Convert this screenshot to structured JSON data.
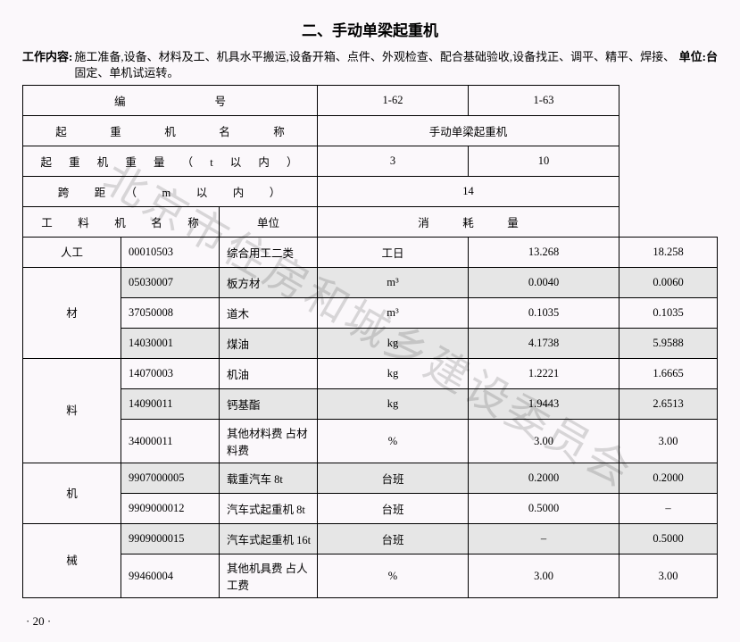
{
  "title": "二、手动单梁起重机",
  "desc_label": "工作内容:",
  "desc_text": "施工准备,设备、材料及工、机具水平搬运,设备开箱、点件、外观检查、配合基础验收,设备找正、调平、精平、焊接、固定、单机试运转。",
  "unit_label": "单位:台",
  "header": {
    "row1_label": "编　　　　　　　　号",
    "row1_v1": "1-62",
    "row1_v2": "1-63",
    "row2_label": "起　重　机　名　称",
    "row2_val": "手动单梁起重机",
    "row3_label": "起 重 机 重 量 （ t 以 内 ）",
    "row3_v1": "3",
    "row3_v2": "10",
    "row4_label": "跨　距　（　m　以　内　）",
    "row4_val": "14",
    "row5_label": "工　料　机　名　称",
    "row5_unit": "单位",
    "row5_cons": "消　　　耗　　　量"
  },
  "cats": {
    "labor": "人工",
    "mat": "材",
    "mat2": "料",
    "mach": "机",
    "mach2": "械"
  },
  "rows": [
    {
      "code": "00010503",
      "name": "综合用工二类",
      "unit": "工日",
      "v1": "13.268",
      "v2": "18.258"
    },
    {
      "code": "05030007",
      "name": "板方材",
      "unit": "m³",
      "v1": "0.0040",
      "v2": "0.0060"
    },
    {
      "code": "37050008",
      "name": "道木",
      "unit": "m³",
      "v1": "0.1035",
      "v2": "0.1035"
    },
    {
      "code": "14030001",
      "name": "煤油",
      "unit": "kg",
      "v1": "4.1738",
      "v2": "5.9588"
    },
    {
      "code": "14070003",
      "name": "机油",
      "unit": "kg",
      "v1": "1.2221",
      "v2": "1.6665"
    },
    {
      "code": "14090011",
      "name": "钙基酯",
      "unit": "kg",
      "v1": "1.9443",
      "v2": "2.6513"
    },
    {
      "code": "34000011",
      "name": "其他材料费 占材料费",
      "unit": "%",
      "v1": "3.00",
      "v2": "3.00"
    },
    {
      "code": "9907000005",
      "name": "载重汽车 8t",
      "unit": "台班",
      "v1": "0.2000",
      "v2": "0.2000"
    },
    {
      "code": "9909000012",
      "name": "汽车式起重机 8t",
      "unit": "台班",
      "v1": "0.5000",
      "v2": "–"
    },
    {
      "code": "9909000015",
      "name": "汽车式起重机 16t",
      "unit": "台班",
      "v1": "–",
      "v2": "0.5000"
    },
    {
      "code": "99460004",
      "name": "其他机具费 占人工费",
      "unit": "%",
      "v1": "3.00",
      "v2": "3.00"
    }
  ],
  "page": "· 20 ·",
  "watermark": "北京市住房和城乡建设委员会"
}
